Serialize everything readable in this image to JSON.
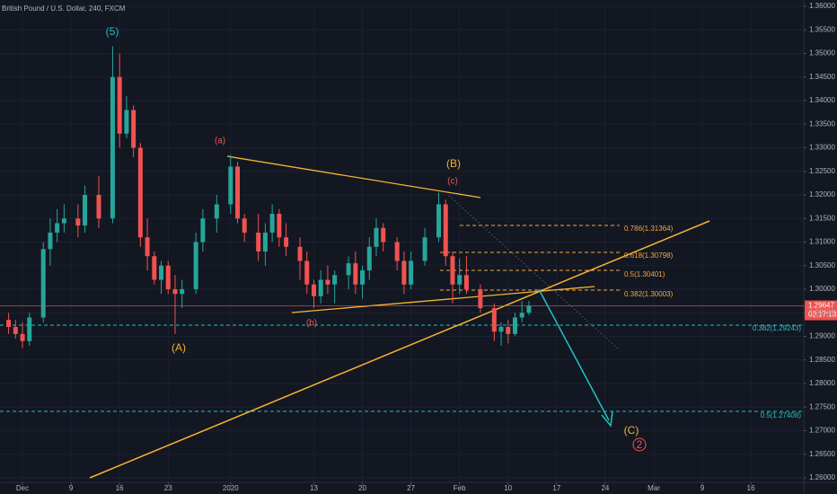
{
  "chart_data": {
    "type": "candlestick",
    "title": "British Pound / U.S. Dollar, 240, FXCM",
    "x": [
      0,
      1,
      2,
      3,
      5,
      6,
      7,
      8,
      10,
      11,
      13,
      15,
      16,
      17,
      18,
      19,
      20,
      21,
      22,
      23,
      24,
      25,
      27,
      28,
      30,
      32,
      33,
      34,
      36,
      37,
      38,
      39,
      40,
      42,
      43,
      44,
      45,
      46,
      47,
      49,
      50,
      51,
      52,
      53,
      54,
      56,
      57,
      58,
      60,
      62,
      63,
      64,
      65,
      66,
      68,
      70,
      71,
      72,
      73,
      74,
      75
    ],
    "open": [
      1.2935,
      1.292,
      1.2905,
      1.289,
      1.294,
      1.3085,
      1.312,
      1.314,
      1.315,
      1.3135,
      1.32,
      1.315,
      1.345,
      1.333,
      1.338,
      1.33,
      1.311,
      1.307,
      1.302,
      1.305,
      1.3,
      1.299,
      1.3,
      1.31,
      1.315,
      1.318,
      1.326,
      1.315,
      1.312,
      1.308,
      1.312,
      1.316,
      1.311,
      1.309,
      1.306,
      1.301,
      1.2985,
      1.302,
      1.301,
      1.303,
      1.3055,
      1.301,
      1.304,
      1.309,
      1.313,
      1.31,
      1.306,
      1.301,
      1.306,
      1.311,
      1.318,
      1.307,
      1.301,
      1.303,
      1.3,
      1.296,
      1.291,
      1.292,
      1.2905,
      1.294,
      1.295
    ],
    "high": [
      1.295,
      1.2935,
      1.293,
      1.295,
      1.31,
      1.315,
      1.317,
      1.318,
      1.318,
      1.322,
      1.324,
      1.3515,
      1.35,
      1.341,
      1.339,
      1.331,
      1.315,
      1.308,
      1.306,
      1.306,
      1.303,
      1.302,
      1.312,
      1.317,
      1.32,
      1.3285,
      1.327,
      1.316,
      1.316,
      1.314,
      1.318,
      1.317,
      1.314,
      1.311,
      1.308,
      1.302,
      1.304,
      1.305,
      1.304,
      1.307,
      1.308,
      1.305,
      1.311,
      1.315,
      1.314,
      1.311,
      1.308,
      1.308,
      1.313,
      1.3205,
      1.319,
      1.308,
      1.3065,
      1.307,
      1.301,
      1.297,
      1.293,
      1.2935,
      1.295,
      1.2975,
      1.2975
    ],
    "low": [
      1.2905,
      1.2895,
      1.2875,
      1.288,
      1.293,
      1.305,
      1.31,
      1.312,
      1.311,
      1.312,
      1.313,
      1.314,
      1.33,
      1.332,
      1.328,
      1.309,
      1.304,
      1.301,
      1.299,
      1.299,
      1.2905,
      1.296,
      1.299,
      1.308,
      1.312,
      1.316,
      1.314,
      1.31,
      1.306,
      1.305,
      1.31,
      1.309,
      1.307,
      1.302,
      1.299,
      1.296,
      1.297,
      1.299,
      1.297,
      1.3,
      1.299,
      1.298,
      1.302,
      1.307,
      1.308,
      1.304,
      1.299,
      1.3,
      1.305,
      1.31,
      1.305,
      1.297,
      1.299,
      1.299,
      1.295,
      1.289,
      1.288,
      1.2885,
      1.29,
      1.293,
      1.2945
    ],
    "close": [
      1.292,
      1.2905,
      1.289,
      1.294,
      1.3085,
      1.312,
      1.314,
      1.315,
      1.3135,
      1.32,
      1.315,
      1.345,
      1.333,
      1.338,
      1.33,
      1.311,
      1.307,
      1.302,
      1.305,
      1.3,
      1.299,
      1.3,
      1.31,
      1.315,
      1.318,
      1.326,
      1.315,
      1.312,
      1.308,
      1.312,
      1.316,
      1.311,
      1.309,
      1.306,
      1.301,
      1.2985,
      1.302,
      1.301,
      1.303,
      1.3055,
      1.301,
      1.304,
      1.309,
      1.313,
      1.31,
      1.306,
      1.301,
      1.306,
      1.311,
      1.318,
      1.307,
      1.301,
      1.303,
      1.3,
      1.296,
      1.291,
      1.292,
      1.2905,
      1.294,
      1.295,
      1.2965
    ],
    "up_color": "#26a69a",
    "down_color": "#ef5350",
    "xlim": [
      -1.24,
      114.62
    ],
    "xticks": [
      {
        "value": 2,
        "label": "Dec"
      },
      9,
      16,
      23,
      {
        "value": 32,
        "label": "2020"
      },
      {
        "value": 44,
        "label": "13"
      },
      {
        "value": 51,
        "label": "20"
      },
      {
        "value": 58,
        "label": "27"
      },
      {
        "value": 65,
        "label": "Feb"
      },
      {
        "value": 72,
        "label": "10"
      },
      {
        "value": 79,
        "label": "17"
      },
      {
        "value": 86,
        "label": "24"
      },
      {
        "value": 93,
        "label": "Mar"
      },
      {
        "value": 100,
        "label": "9"
      },
      {
        "value": 107,
        "label": "16"
      }
    ],
    "ylim": [
      1.26,
      1.36
    ],
    "yticks": [
      {
        "value": 1.36,
        "label": "1.36000"
      },
      {
        "value": 1.355,
        "label": "1.35500"
      },
      {
        "value": 1.35,
        "label": "1.35000"
      },
      {
        "value": 1.345,
        "label": "1.34500"
      },
      {
        "value": 1.34,
        "label": "1.34000"
      },
      {
        "value": 1.335,
        "label": "1.33500"
      },
      {
        "value": 1.33,
        "label": "1.33000"
      },
      {
        "value": 1.325,
        "label": "1.32500"
      },
      {
        "value": 1.32,
        "label": "1.32000"
      },
      {
        "value": 1.315,
        "label": "1.31500"
      },
      {
        "value": 1.31,
        "label": "1.31000"
      },
      {
        "value": 1.305,
        "label": "1.30500"
      },
      {
        "value": 1.3,
        "label": "1.30000"
      },
      {
        "value": 1.295,
        "label": "1.29500"
      },
      {
        "value": 1.29,
        "label": "1.29000"
      },
      {
        "value": 1.285,
        "label": "1.28500"
      },
      {
        "value": 1.28,
        "label": "1.28000"
      },
      {
        "value": 1.275,
        "label": "1.27500"
      },
      {
        "value": 1.27,
        "label": "1.27000"
      },
      {
        "value": 1.265,
        "label": "1.26500"
      },
      {
        "value": 1.26,
        "label": "1.26000"
      }
    ],
    "grid": true,
    "last_price": 1.29647,
    "countdown": "02:17:13",
    "annotations": {
      "wave_5": "(5)",
      "wave_a": "(a)",
      "wave_A": "(A)",
      "wave_b": "(b)",
      "wave_B": "(B)",
      "wave_c": "(c)",
      "wave_C": "(C)",
      "wave_2": "2",
      "fib_786": "0.786(1.31364)",
      "fib_618": "0.618(1.30798)",
      "fib_5": "0.5(1.30401)",
      "fib_382": "0.382(1.30003)",
      "fib_382_major": "0.382(1.29243)",
      "fib_5_major": "0.5(1.27408)"
    }
  }
}
